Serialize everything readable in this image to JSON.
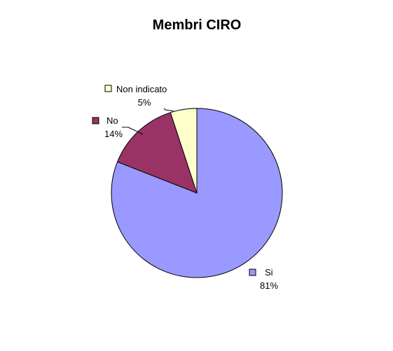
{
  "chart_data": {
    "type": "pie",
    "title": "Membri CIRO",
    "slices": [
      {
        "label": "Si",
        "value": 81,
        "value_label": "81%",
        "color": "#9999ff"
      },
      {
        "label": "No",
        "value": 14,
        "value_label": "14%",
        "color": "#993366"
      },
      {
        "label": "Non indicato",
        "value": 5,
        "value_label": "5%",
        "color": "#ffffcc"
      }
    ],
    "start_direction": "12 o'clock",
    "direction": "clockwise",
    "labels": "outside with leader lines"
  }
}
